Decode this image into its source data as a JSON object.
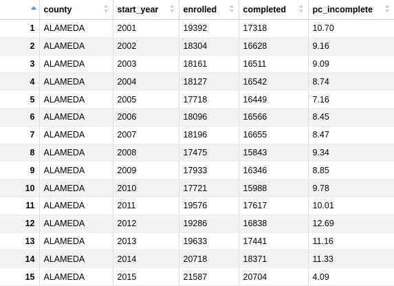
{
  "columns": [
    {
      "key": "idx",
      "label": ""
    },
    {
      "key": "county",
      "label": "county"
    },
    {
      "key": "start_year",
      "label": "start_year"
    },
    {
      "key": "enrolled",
      "label": "enrolled"
    },
    {
      "key": "completed",
      "label": "completed"
    },
    {
      "key": "pc_incomplete",
      "label": "pc_incomplete"
    }
  ],
  "sort": {
    "column": "idx",
    "direction": "ascending",
    "icon": "sort-asc-icon"
  },
  "rows": [
    {
      "idx": "1",
      "county": "ALAMEDA",
      "start_year": "2001",
      "enrolled": "19392",
      "completed": "17318",
      "pc_incomplete": "10.70"
    },
    {
      "idx": "2",
      "county": "ALAMEDA",
      "start_year": "2002",
      "enrolled": "18304",
      "completed": "16628",
      "pc_incomplete": "9.16"
    },
    {
      "idx": "3",
      "county": "ALAMEDA",
      "start_year": "2003",
      "enrolled": "18161",
      "completed": "16511",
      "pc_incomplete": "9.09"
    },
    {
      "idx": "4",
      "county": "ALAMEDA",
      "start_year": "2004",
      "enrolled": "18127",
      "completed": "16542",
      "pc_incomplete": "8.74"
    },
    {
      "idx": "5",
      "county": "ALAMEDA",
      "start_year": "2005",
      "enrolled": "17718",
      "completed": "16449",
      "pc_incomplete": "7.16"
    },
    {
      "idx": "6",
      "county": "ALAMEDA",
      "start_year": "2006",
      "enrolled": "18096",
      "completed": "16566",
      "pc_incomplete": "8.45"
    },
    {
      "idx": "7",
      "county": "ALAMEDA",
      "start_year": "2007",
      "enrolled": "18196",
      "completed": "16655",
      "pc_incomplete": "8.47"
    },
    {
      "idx": "8",
      "county": "ALAMEDA",
      "start_year": "2008",
      "enrolled": "17475",
      "completed": "15843",
      "pc_incomplete": "9.34"
    },
    {
      "idx": "9",
      "county": "ALAMEDA",
      "start_year": "2009",
      "enrolled": "17933",
      "completed": "16346",
      "pc_incomplete": "8.85"
    },
    {
      "idx": "10",
      "county": "ALAMEDA",
      "start_year": "2010",
      "enrolled": "17721",
      "completed": "15988",
      "pc_incomplete": "9.78"
    },
    {
      "idx": "11",
      "county": "ALAMEDA",
      "start_year": "2011",
      "enrolled": "19576",
      "completed": "17617",
      "pc_incomplete": "10.01"
    },
    {
      "idx": "12",
      "county": "ALAMEDA",
      "start_year": "2012",
      "enrolled": "19286",
      "completed": "16838",
      "pc_incomplete": "12.69"
    },
    {
      "idx": "13",
      "county": "ALAMEDA",
      "start_year": "2013",
      "enrolled": "19633",
      "completed": "17441",
      "pc_incomplete": "11.16"
    },
    {
      "idx": "14",
      "county": "ALAMEDA",
      "start_year": "2014",
      "enrolled": "20718",
      "completed": "18371",
      "pc_incomplete": "11.33"
    },
    {
      "idx": "15",
      "county": "ALAMEDA",
      "start_year": "2015",
      "enrolled": "21587",
      "completed": "20704",
      "pc_incomplete": "4.09"
    }
  ]
}
